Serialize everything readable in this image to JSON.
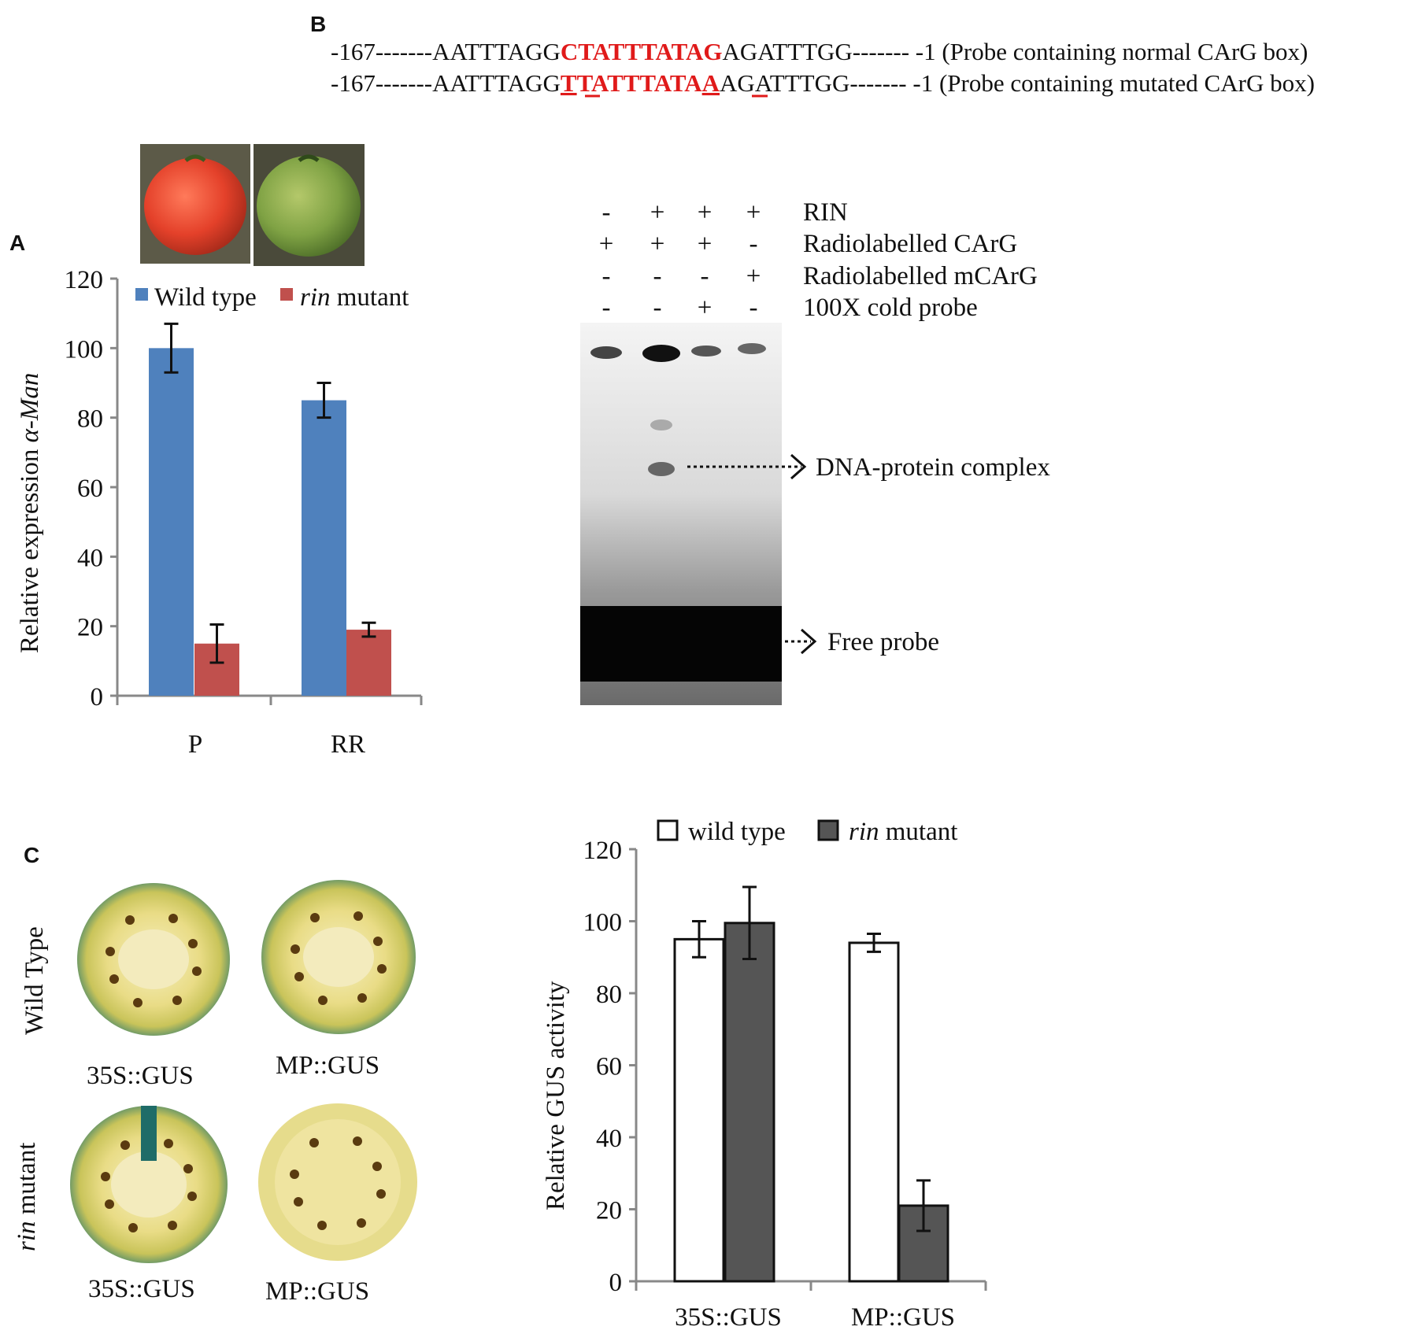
{
  "panels": {
    "A": "A",
    "B": "B",
    "C": "C"
  },
  "sequences": {
    "normal": {
      "prefix": "-167-------AATTTAGG",
      "core": "CTATTTATAG",
      "suffix": "AGATTTGG------- -1 (Probe containing normal CArG box)"
    },
    "mutated": {
      "prefix": "-167-------AATTTAGG",
      "mut1": "T",
      "core": "TATTTATA",
      "mut2": "A",
      "suffix": "AGATTTGG------- -1 (Probe containing mutated CArG box)"
    }
  },
  "emsa": {
    "rows": [
      {
        "label": "RIN",
        "signs": [
          "-",
          "+",
          "+",
          "+"
        ]
      },
      {
        "label": "Radiolabelled CArG",
        "signs": [
          "+",
          "+",
          "+",
          "-"
        ]
      },
      {
        "label": "Radiolabelled mCArG",
        "signs": [
          "-",
          "-",
          "-",
          "+"
        ]
      },
      {
        "label": "100X cold probe",
        "signs": [
          "-",
          "-",
          "+",
          "-"
        ]
      }
    ],
    "annotations": {
      "complex": "DNA-protein complex",
      "free": "Free probe"
    }
  },
  "photos_c": {
    "row_labels": {
      "wild_prefix": "Wild Type",
      "rin_italic": "rin",
      "rin_rest": " mutant"
    },
    "captions": [
      "35S::GUS",
      "MP::GUS",
      "35S::GUS",
      "MP::GUS"
    ]
  },
  "chart_data": [
    {
      "type": "bar",
      "categories": [
        "P",
        "RR"
      ],
      "series": [
        {
          "name": "Wild type",
          "values": [
            100,
            85
          ],
          "errors": [
            7,
            5
          ],
          "color": "#4f81bd"
        },
        {
          "name": "rin mutant",
          "values": [
            15,
            19
          ],
          "errors": [
            5.5,
            2
          ],
          "color": "#c0504d"
        }
      ],
      "legend": {
        "wild": "Wild type",
        "rin_italic": "rin",
        "rin_rest": " mutant"
      },
      "ylabel_prefix": "Relative expression ",
      "ylabel_italic": "α-Man",
      "ylim": [
        0,
        120
      ],
      "yticks": [
        "0",
        "20",
        "40",
        "60",
        "80",
        "100",
        "120"
      ],
      "legend_position": "top"
    },
    {
      "type": "bar",
      "categories": [
        "35S::GUS",
        "MP::GUS"
      ],
      "series": [
        {
          "name": "wild type",
          "values": [
            95,
            94
          ],
          "errors": [
            5,
            2.5
          ],
          "color": "#ffffff"
        },
        {
          "name": "rin mutant",
          "values": [
            99.5,
            21
          ],
          "errors": [
            10,
            7
          ],
          "color": "#555555"
        }
      ],
      "legend": {
        "wild": "wild type",
        "rin_italic": "rin",
        "rin_rest": " mutant"
      },
      "ylabel": "Relative GUS activity",
      "ylim": [
        0,
        120
      ],
      "yticks": [
        "0",
        "20",
        "40",
        "60",
        "80",
        "100",
        "120"
      ],
      "legend_position": "top"
    }
  ]
}
